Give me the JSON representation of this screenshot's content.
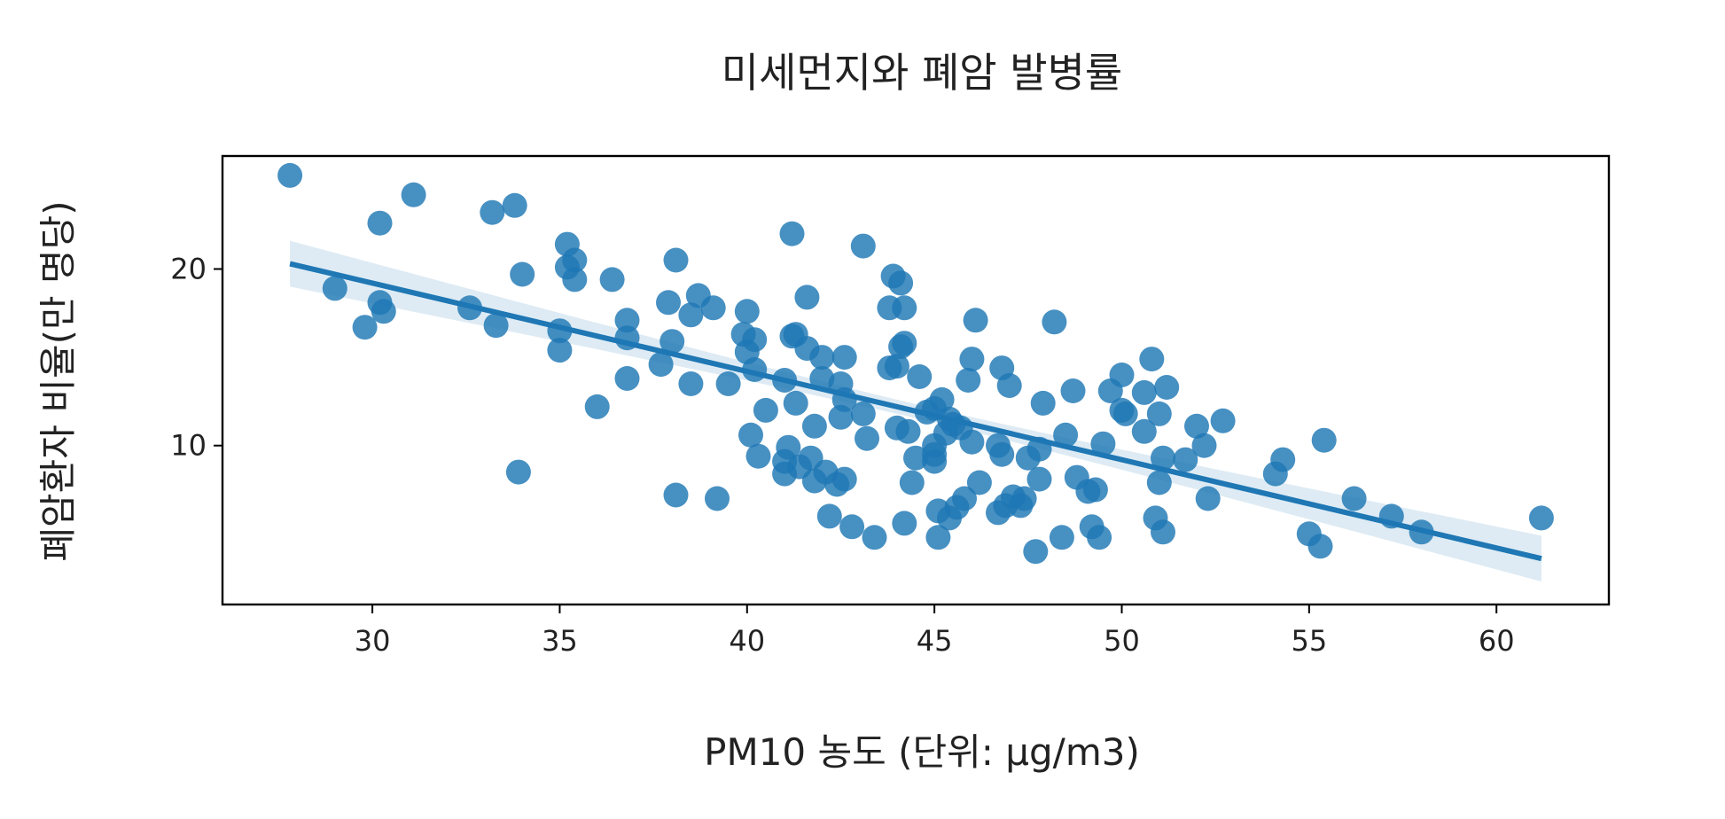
{
  "chart_data": {
    "type": "scatter",
    "title": "미세먼지와 폐암 발병률",
    "xlabel": "PM10 농도 (단위: μg/m3)",
    "ylabel": "폐암환자 비율(만 명당)",
    "xlim": [
      26.0,
      63.0
    ],
    "ylim": [
      1.0,
      26.4
    ],
    "xticks": [
      30,
      35,
      40,
      45,
      50,
      55,
      60
    ],
    "yticks": [
      10,
      20
    ],
    "grid": false,
    "legend": "none",
    "color": "#1f77b4",
    "regression": {
      "x_range": [
        27.8,
        61.2
      ],
      "y_start": 20.3,
      "y_end": 3.6,
      "ci_half_width_ends": 1.3,
      "ci_half_width_mid": 0.4
    },
    "points": [
      [
        27.8,
        25.3
      ],
      [
        29.0,
        18.9
      ],
      [
        29.8,
        16.7
      ],
      [
        30.2,
        22.6
      ],
      [
        30.2,
        18.1
      ],
      [
        30.3,
        17.6
      ],
      [
        31.1,
        24.2
      ],
      [
        32.6,
        17.8
      ],
      [
        33.2,
        23.2
      ],
      [
        33.3,
        16.8
      ],
      [
        33.8,
        23.6
      ],
      [
        34.0,
        19.7
      ],
      [
        33.9,
        8.5
      ],
      [
        35.0,
        16.5
      ],
      [
        35.0,
        15.4
      ],
      [
        35.2,
        21.4
      ],
      [
        35.2,
        20.1
      ],
      [
        35.4,
        20.5
      ],
      [
        35.4,
        19.4
      ],
      [
        36.0,
        12.2
      ],
      [
        36.4,
        19.4
      ],
      [
        36.8,
        17.1
      ],
      [
        36.8,
        16.1
      ],
      [
        36.8,
        13.8
      ],
      [
        37.7,
        14.6
      ],
      [
        37.9,
        18.1
      ],
      [
        38.0,
        15.9
      ],
      [
        38.1,
        20.5
      ],
      [
        38.1,
        7.2
      ],
      [
        38.5,
        17.4
      ],
      [
        38.5,
        13.5
      ],
      [
        38.7,
        18.5
      ],
      [
        39.1,
        17.8
      ],
      [
        39.2,
        7.0
      ],
      [
        39.5,
        13.5
      ],
      [
        39.9,
        16.3
      ],
      [
        40.0,
        17.6
      ],
      [
        40.0,
        15.3
      ],
      [
        40.2,
        14.3
      ],
      [
        40.2,
        16.0
      ],
      [
        40.1,
        10.6
      ],
      [
        40.3,
        9.4
      ],
      [
        40.5,
        12.0
      ],
      [
        41.0,
        13.7
      ],
      [
        41.0,
        8.4
      ],
      [
        41.0,
        9.1
      ],
      [
        41.1,
        9.9
      ],
      [
        41.2,
        16.2
      ],
      [
        41.2,
        22.0
      ],
      [
        41.3,
        16.3
      ],
      [
        41.3,
        12.4
      ],
      [
        41.4,
        8.8
      ],
      [
        41.6,
        15.5
      ],
      [
        41.6,
        18.4
      ],
      [
        41.7,
        9.3
      ],
      [
        41.8,
        11.1
      ],
      [
        41.8,
        8.0
      ],
      [
        42.0,
        15.0
      ],
      [
        42.0,
        13.8
      ],
      [
        42.1,
        8.5
      ],
      [
        42.2,
        6.0
      ],
      [
        42.4,
        7.8
      ],
      [
        42.5,
        11.6
      ],
      [
        42.5,
        13.5
      ],
      [
        42.6,
        12.6
      ],
      [
        42.6,
        8.1
      ],
      [
        42.6,
        15.0
      ],
      [
        42.8,
        5.4
      ],
      [
        43.1,
        11.8
      ],
      [
        43.1,
        21.3
      ],
      [
        43.2,
        10.4
      ],
      [
        43.4,
        4.8
      ],
      [
        43.8,
        17.8
      ],
      [
        43.8,
        14.4
      ],
      [
        43.9,
        19.6
      ],
      [
        44.0,
        14.5
      ],
      [
        44.0,
        11.0
      ],
      [
        44.1,
        19.2
      ],
      [
        44.1,
        15.6
      ],
      [
        44.2,
        5.6
      ],
      [
        44.2,
        15.8
      ],
      [
        44.2,
        17.8
      ],
      [
        44.3,
        10.8
      ],
      [
        44.4,
        7.9
      ],
      [
        44.5,
        9.3
      ],
      [
        44.6,
        13.9
      ],
      [
        44.8,
        11.9
      ],
      [
        45.0,
        12.1
      ],
      [
        45.0,
        10.0
      ],
      [
        45.0,
        9.1
      ],
      [
        45.0,
        9.5
      ],
      [
        45.1,
        4.8
      ],
      [
        45.1,
        6.3
      ],
      [
        45.2,
        12.6
      ],
      [
        45.3,
        10.7
      ],
      [
        45.4,
        5.9
      ],
      [
        45.4,
        11.5
      ],
      [
        45.5,
        11.2
      ],
      [
        45.6,
        6.5
      ],
      [
        45.7,
        11.0
      ],
      [
        45.8,
        7.0
      ],
      [
        45.9,
        13.7
      ],
      [
        46.0,
        14.9
      ],
      [
        46.0,
        10.2
      ],
      [
        46.1,
        17.1
      ],
      [
        46.2,
        7.9
      ],
      [
        46.7,
        10.0
      ],
      [
        46.7,
        6.2
      ],
      [
        46.8,
        9.5
      ],
      [
        46.8,
        14.4
      ],
      [
        46.9,
        6.6
      ],
      [
        47.0,
        13.4
      ],
      [
        47.1,
        7.1
      ],
      [
        47.3,
        6.6
      ],
      [
        47.4,
        7.0
      ],
      [
        47.5,
        9.3
      ],
      [
        47.7,
        4.0
      ],
      [
        47.8,
        9.8
      ],
      [
        47.8,
        8.1
      ],
      [
        47.9,
        12.4
      ],
      [
        48.2,
        17.0
      ],
      [
        48.4,
        4.8
      ],
      [
        48.5,
        10.6
      ],
      [
        48.7,
        13.1
      ],
      [
        48.8,
        8.2
      ],
      [
        49.1,
        7.4
      ],
      [
        49.2,
        5.4
      ],
      [
        49.3,
        7.5
      ],
      [
        49.4,
        4.8
      ],
      [
        49.5,
        10.1
      ],
      [
        49.7,
        13.1
      ],
      [
        50.0,
        14.0
      ],
      [
        50.0,
        12.0
      ],
      [
        50.1,
        11.8
      ],
      [
        50.6,
        10.8
      ],
      [
        50.6,
        13.0
      ],
      [
        50.8,
        14.9
      ],
      [
        50.9,
        5.9
      ],
      [
        51.0,
        11.8
      ],
      [
        51.0,
        7.9
      ],
      [
        51.1,
        5.1
      ],
      [
        51.1,
        9.3
      ],
      [
        51.2,
        13.3
      ],
      [
        51.7,
        9.2
      ],
      [
        52.0,
        11.1
      ],
      [
        52.2,
        10.0
      ],
      [
        52.3,
        7.0
      ],
      [
        52.7,
        11.4
      ],
      [
        54.1,
        8.4
      ],
      [
        54.3,
        9.2
      ],
      [
        55.0,
        5.0
      ],
      [
        55.3,
        4.3
      ],
      [
        55.4,
        10.3
      ],
      [
        56.2,
        7.0
      ],
      [
        57.2,
        6.0
      ],
      [
        58.0,
        5.1
      ],
      [
        61.2,
        5.9
      ]
    ]
  }
}
